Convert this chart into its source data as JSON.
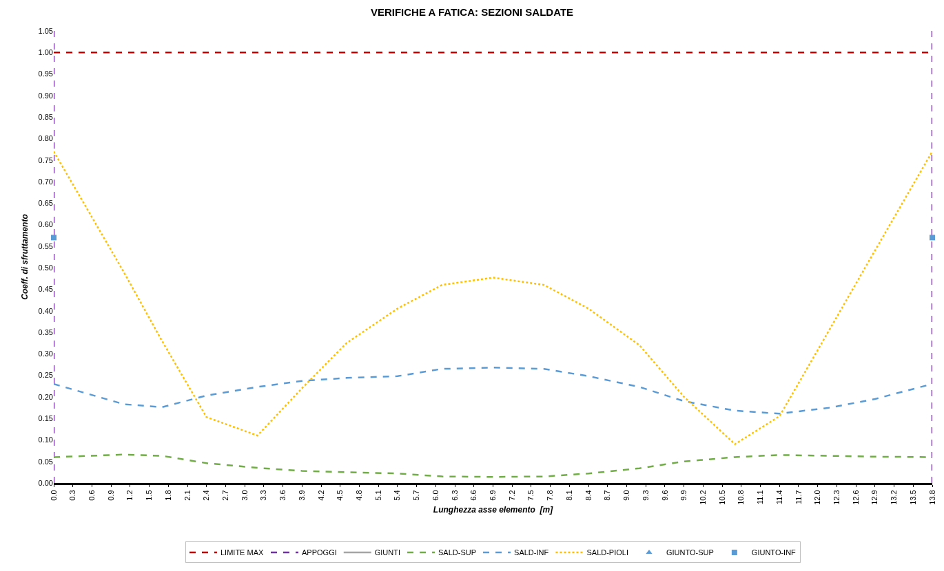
{
  "chart_data": {
    "type": "line",
    "title": "VERIFICHE A FATICA: SEZIONI SALDATE",
    "xlabel": "Lunghezza asse elemento  [m]",
    "ylabel": "Coeff. di sfruttamento",
    "x": [
      0,
      1.1,
      1.7,
      2.4,
      3.2,
      3.9,
      4.6,
      5.4,
      6.1,
      6.9,
      7.7,
      8.4,
      9.2,
      9.9,
      10.7,
      11.4,
      12.2,
      12.9,
      13.8
    ],
    "series": [
      {
        "name": "LIMITE MAX",
        "color": "#c00000",
        "line_style": "dashed",
        "values": [
          1,
          1,
          1,
          1,
          1,
          1,
          1,
          1,
          1,
          1,
          1,
          1,
          1,
          1,
          1,
          1,
          1,
          1,
          1
        ]
      },
      {
        "name": "GIUNTI",
        "color": "#a5a5a5",
        "line_style": "solid",
        "values": [
          null,
          null,
          null,
          null,
          null,
          null,
          null,
          null,
          null,
          null,
          null,
          null,
          null,
          null,
          null,
          null,
          null,
          null,
          null
        ]
      },
      {
        "name": "SALD-SUP",
        "color": "#70ad47",
        "line_style": "dashed",
        "values": [
          0.06,
          0.066,
          0.063,
          0.046,
          0.035,
          0.028,
          0.025,
          0.022,
          0.015,
          0.014,
          0.015,
          0.022,
          0.034,
          0.05,
          0.06,
          0.065,
          0.063,
          0.061,
          0.06
        ]
      },
      {
        "name": "SALD-INF",
        "color": "#5b9bd5",
        "line_style": "dashed",
        "values": [
          0.23,
          0.183,
          0.176,
          0.203,
          0.223,
          0.237,
          0.244,
          0.248,
          0.265,
          0.268,
          0.265,
          0.248,
          0.223,
          0.19,
          0.168,
          0.161,
          0.175,
          0.195,
          0.23
        ]
      },
      {
        "name": "SALD-PIOLI",
        "color": "#ffc000",
        "line_style": "dotted",
        "values": [
          0.77,
          0.49,
          0.33,
          0.153,
          0.11,
          0.22,
          0.325,
          0.405,
          0.46,
          0.477,
          0.46,
          0.405,
          0.32,
          0.2,
          0.09,
          0.155,
          0.36,
          0.54,
          0.77
        ]
      },
      {
        "name": "GIUNTO-SUP",
        "type": "scatter",
        "marker": "triangle",
        "color": "#5b9bd5",
        "values": [
          null,
          null,
          null,
          null,
          null,
          null,
          null,
          null,
          null,
          null,
          null,
          null,
          null,
          null,
          null,
          null,
          null,
          null,
          null
        ]
      },
      {
        "name": "GIUNTO-INF",
        "type": "scatter",
        "marker": "square",
        "color": "#5b9bd5",
        "values": [
          0.57,
          null,
          null,
          null,
          null,
          null,
          null,
          null,
          null,
          null,
          null,
          null,
          null,
          null,
          null,
          null,
          null,
          null,
          0.57
        ]
      }
    ],
    "xlim": [
      0,
      13.8
    ],
    "xticks": [
      {
        "value": 0,
        "label": "0.0"
      },
      0.3,
      0.6,
      0.9,
      1.2,
      1.5,
      1.8,
      2.1,
      2.4,
      2.7,
      {
        "value": 3,
        "label": "3.0"
      },
      3.3,
      3.6,
      3.9,
      4.2,
      4.5,
      4.8,
      5.1,
      5.4,
      5.7,
      {
        "value": 6,
        "label": "6.0"
      },
      6.3,
      6.6,
      6.9,
      7.2,
      7.5,
      7.8,
      8.1,
      8.4,
      8.7,
      {
        "value": 9,
        "label": "9.0"
      },
      9.3,
      9.6,
      9.9,
      10.2,
      10.5,
      10.8,
      11.1,
      11.4,
      11.7,
      {
        "value": 12,
        "label": "12.0"
      },
      12.3,
      12.6,
      12.9,
      13.2,
      13.5,
      13.8
    ],
    "ylim": [
      0,
      1.05
    ],
    "yticks": [
      {
        "value": 0,
        "label": "0.00"
      },
      0.05,
      {
        "value": 0.1,
        "label": "0.10"
      },
      0.15,
      {
        "value": 0.2,
        "label": "0.20"
      },
      0.25,
      {
        "value": 0.3,
        "label": "0.30"
      },
      0.35,
      {
        "value": 0.4,
        "label": "0.40"
      },
      0.45,
      {
        "value": 0.5,
        "label": "0.50"
      },
      0.55,
      {
        "value": 0.6,
        "label": "0.60"
      },
      0.65,
      {
        "value": 0.7,
        "label": "0.70"
      },
      0.75,
      {
        "value": 0.8,
        "label": "0.80"
      },
      0.85,
      {
        "value": 0.9,
        "label": "0.90"
      },
      0.95,
      {
        "value": 1,
        "label": "1.00"
      },
      1.05
    ],
    "ref_lines": [
      {
        "axis": "x",
        "value": 0,
        "label": "APPOGGI",
        "color": "#7030a0",
        "line_style": "dashed"
      },
      {
        "axis": "x",
        "value": 13.8,
        "color": "#7030a0",
        "line_style": "dashed"
      }
    ],
    "grid": false,
    "legend": "bottom"
  }
}
